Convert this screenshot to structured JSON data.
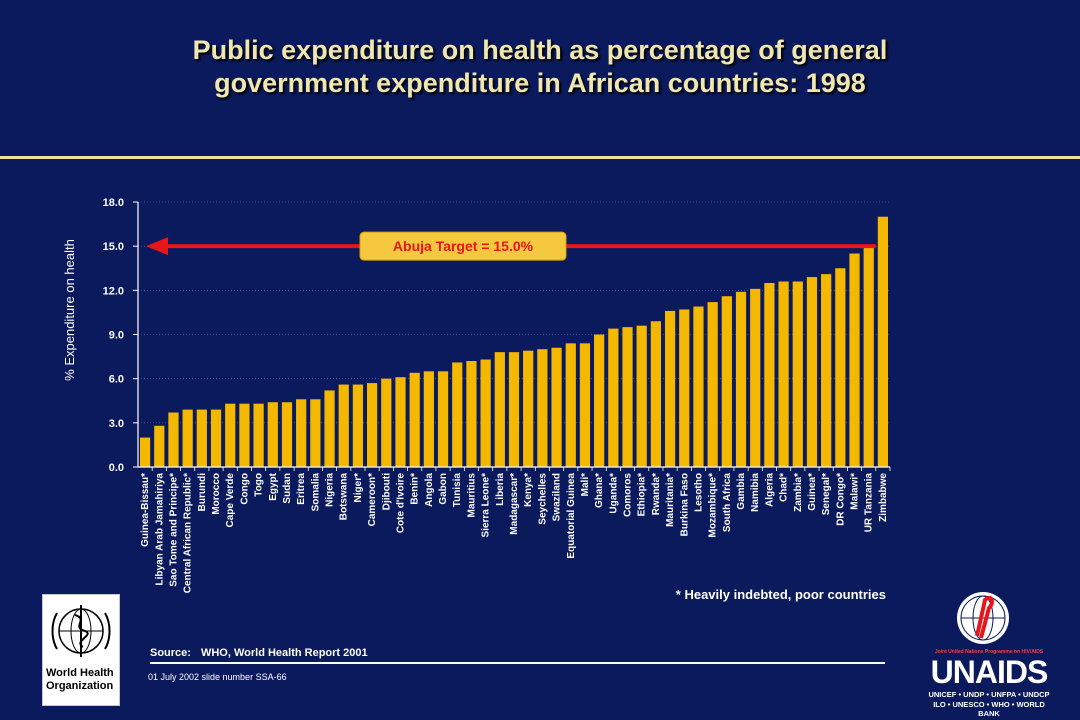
{
  "slide": {
    "title_line1": "Public expenditure on health as percentage of general",
    "title_line2": "government expenditure in African countries: 1998",
    "footnote": "* Heavily indebted, poor countries",
    "source_label": "Source:",
    "source_value": "WHO, World Health Report 2001",
    "slide_meta": "01 July 2002 slide number SSA-66",
    "who_logo_text_line1": "World Health",
    "who_logo_text_line2": "Organization",
    "unaids_tagline": "Joint United Nations Programme on HIV/AIDS",
    "unaids_name": "UNAIDS",
    "unaids_line1": "UNICEF • UNDP • UNFPA • UNDCP",
    "unaids_line2": "ILO • UNESCO • WHO • WORLD BANK"
  },
  "colors": {
    "background": "#0b1a5c",
    "bar": "#f5b800",
    "target_line": "#e8151a",
    "callout_bg": "#f5c840",
    "title_text": "#f0e6b0",
    "rule": "#f3e29a"
  },
  "chart_data": {
    "type": "bar",
    "title": "Public expenditure on health as percentage of general government expenditure in African countries: 1998",
    "ylabel": "% Expenditure on health",
    "xlabel": "",
    "ylim": [
      0,
      18
    ],
    "yticks": [
      "0.0",
      "3.0",
      "6.0",
      "9.0",
      "12.0",
      "15.0",
      "18.0"
    ],
    "ytick_values": [
      0,
      3,
      6,
      9,
      12,
      15,
      18
    ],
    "grid": true,
    "categories": [
      "Guinea-Bissau*",
      "Libyan Arab Jamahiriya",
      "Sao Tome and Principe*",
      "Central African Republic*",
      "Burundi",
      "Morocco",
      "Cape Verde",
      "Congo",
      "Togo",
      "Egypt",
      "Sudan",
      "Eritrea",
      "Somalia",
      "Nigeria",
      "Botswana",
      "Niger*",
      "Cameroon*",
      "Djibouti",
      "Cote d'Ivoire",
      "Benin*",
      "Angola",
      "Gabon",
      "Tunisia",
      "Mauritius",
      "Sierra Leone*",
      "Liberia",
      "Madagascar*",
      "Kenya*",
      "Seychelles",
      "Swaziland",
      "Equatorial Guinea",
      "Mali*",
      "Ghana*",
      "Uganda*",
      "Comoros",
      "Ethiopia*",
      "Rwanda*",
      "Mauritania*",
      "Burkina Faso",
      "Lesotho",
      "Mozambique*",
      "South Africa",
      "Gambia",
      "Namibia",
      "Algeria",
      "Chad*",
      "Zambia*",
      "Guinea*",
      "Senegal*",
      "DR Congo*",
      "Malawi*",
      "UR Tanzania",
      "Zimbabwe"
    ],
    "values": [
      2.0,
      2.8,
      3.7,
      3.9,
      3.9,
      3.9,
      4.3,
      4.3,
      4.3,
      4.4,
      4.4,
      4.6,
      4.6,
      5.2,
      5.6,
      5.6,
      5.7,
      6.0,
      6.1,
      6.4,
      6.5,
      6.5,
      7.1,
      7.2,
      7.3,
      7.8,
      7.8,
      7.9,
      8.0,
      8.1,
      8.4,
      8.4,
      9.0,
      9.4,
      9.5,
      9.6,
      9.9,
      10.6,
      10.7,
      10.9,
      11.2,
      11.6,
      11.9,
      12.1,
      12.5,
      12.6,
      12.6,
      12.9,
      13.1,
      13.5,
      14.5,
      14.9,
      17.0
    ],
    "target": {
      "value": 15.0,
      "label": "Abuja Target = 15.0%"
    },
    "legend": "none"
  }
}
